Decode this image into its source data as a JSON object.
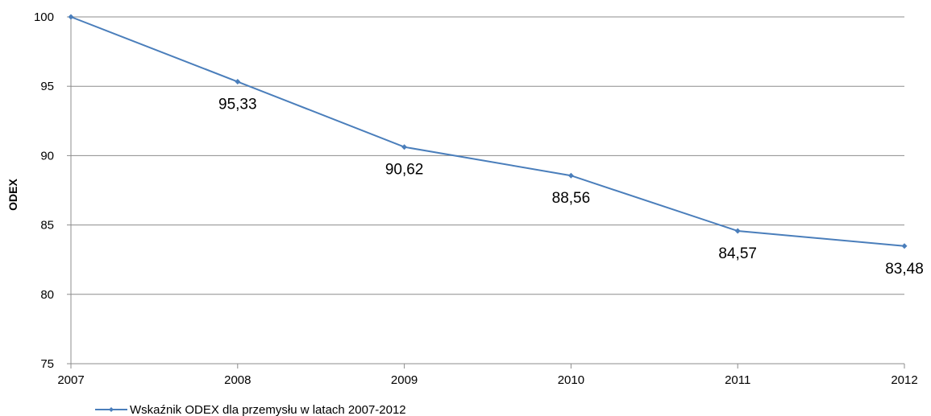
{
  "chart_data": {
    "type": "line",
    "x": [
      "2007",
      "2008",
      "2009",
      "2010",
      "2011",
      "2012"
    ],
    "series": [
      {
        "name": "Wskaźnik ODEX dla przemysłu w latach 2007-2012",
        "values": [
          100,
          95.33,
          90.62,
          88.56,
          84.57,
          83.48
        ],
        "data_labels": [
          "",
          "95,33",
          "90,62",
          "88,56",
          "84,57",
          "83,48"
        ],
        "color": "#4a7ebb"
      }
    ],
    "ylabel": "ODEX",
    "xlabel": "",
    "ylim": [
      75,
      100
    ],
    "yticks": [
      "75",
      "80",
      "85",
      "90",
      "95",
      "100"
    ],
    "grid": "horizontal",
    "legend_position": "bottom-left",
    "gridline_color": "#8c8c8c"
  }
}
